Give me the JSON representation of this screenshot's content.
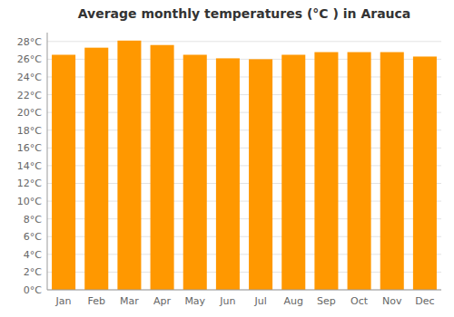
{
  "chart_data": {
    "type": "bar",
    "title": "Average monthly temperatures (°C ) in Arauca",
    "categories": [
      "Jan",
      "Feb",
      "Mar",
      "Apr",
      "May",
      "Jun",
      "Jul",
      "Aug",
      "Sep",
      "Oct",
      "Nov",
      "Dec"
    ],
    "values": [
      26.5,
      27.3,
      28.1,
      27.6,
      26.5,
      26.1,
      26.0,
      26.5,
      26.8,
      26.8,
      26.8,
      26.3
    ],
    "color": "#FF9800",
    "ylim": [
      0,
      29
    ],
    "yticks": [
      {
        "value": 0,
        "label": "0°C"
      },
      {
        "value": 2,
        "label": "2°C"
      },
      {
        "value": 4,
        "label": "4°C"
      },
      {
        "value": 6,
        "label": "6°C"
      },
      {
        "value": 8,
        "label": "8°C"
      },
      {
        "value": 10,
        "label": "10°C"
      },
      {
        "value": 12,
        "label": "12°C"
      },
      {
        "value": 14,
        "label": "14°C"
      },
      {
        "value": 16,
        "label": "16°C"
      },
      {
        "value": 18,
        "label": "18°C"
      },
      {
        "value": 20,
        "label": "20°C"
      },
      {
        "value": 22,
        "label": "22°C"
      },
      {
        "value": 24,
        "label": "24°C"
      },
      {
        "value": 26,
        "label": "26°C"
      },
      {
        "value": 28,
        "label": "28°C"
      }
    ],
    "grid": true
  }
}
